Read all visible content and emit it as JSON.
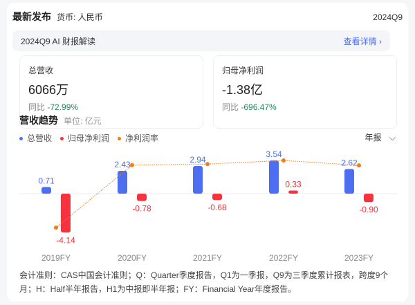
{
  "header": {
    "title": "最新发布",
    "currency": "货币: 人民币",
    "period": "2024Q9"
  },
  "ai": {
    "label": "2024Q9 AI 财报解读",
    "link": "查看详情 ›"
  },
  "metrics": [
    {
      "label": "总营收",
      "value": "6066万",
      "yoy_label": "同比",
      "yoy": "-72.99%"
    },
    {
      "label": "归母净利润",
      "value": "-1.38亿",
      "yoy_label": "同比",
      "yoy": "-696.47%"
    }
  ],
  "trend": {
    "title": "营收趋势",
    "unit": "单位: 亿元",
    "period_select": "年报"
  },
  "chart_data": {
    "type": "bar",
    "categories": [
      "2019FY",
      "2020FY",
      "2021FY",
      "2022FY",
      "2023FY"
    ],
    "series": [
      {
        "name": "总营收",
        "color": "#4e6ef2",
        "values": [
          0.71,
          2.43,
          2.94,
          3.54,
          2.62
        ],
        "labels": [
          "0.71",
          "2.43",
          "2.94",
          "3.54",
          "2.62"
        ]
      },
      {
        "name": "归母净利润",
        "color": "#f5333f",
        "values": [
          -4.14,
          -0.78,
          -0.68,
          0.33,
          -0.9
        ],
        "labels": [
          "-4.14",
          "-0.78",
          "-0.68",
          "0.33",
          "-0.90"
        ]
      },
      {
        "name": "净利润率",
        "color": "#f07d1a",
        "type": "line",
        "values": [
          -583,
          -32,
          -23,
          9.3,
          -34
        ]
      }
    ],
    "ylabel": "亿元"
  },
  "note": "会计准则：CAS中国会计准则；Q：Quarter季度报告，Q1为一季报，Q9为三季度累计报表，跨度9个月；H：Half半年报告，H1为中报即半年报；FY：Financial Year年度报告。"
}
